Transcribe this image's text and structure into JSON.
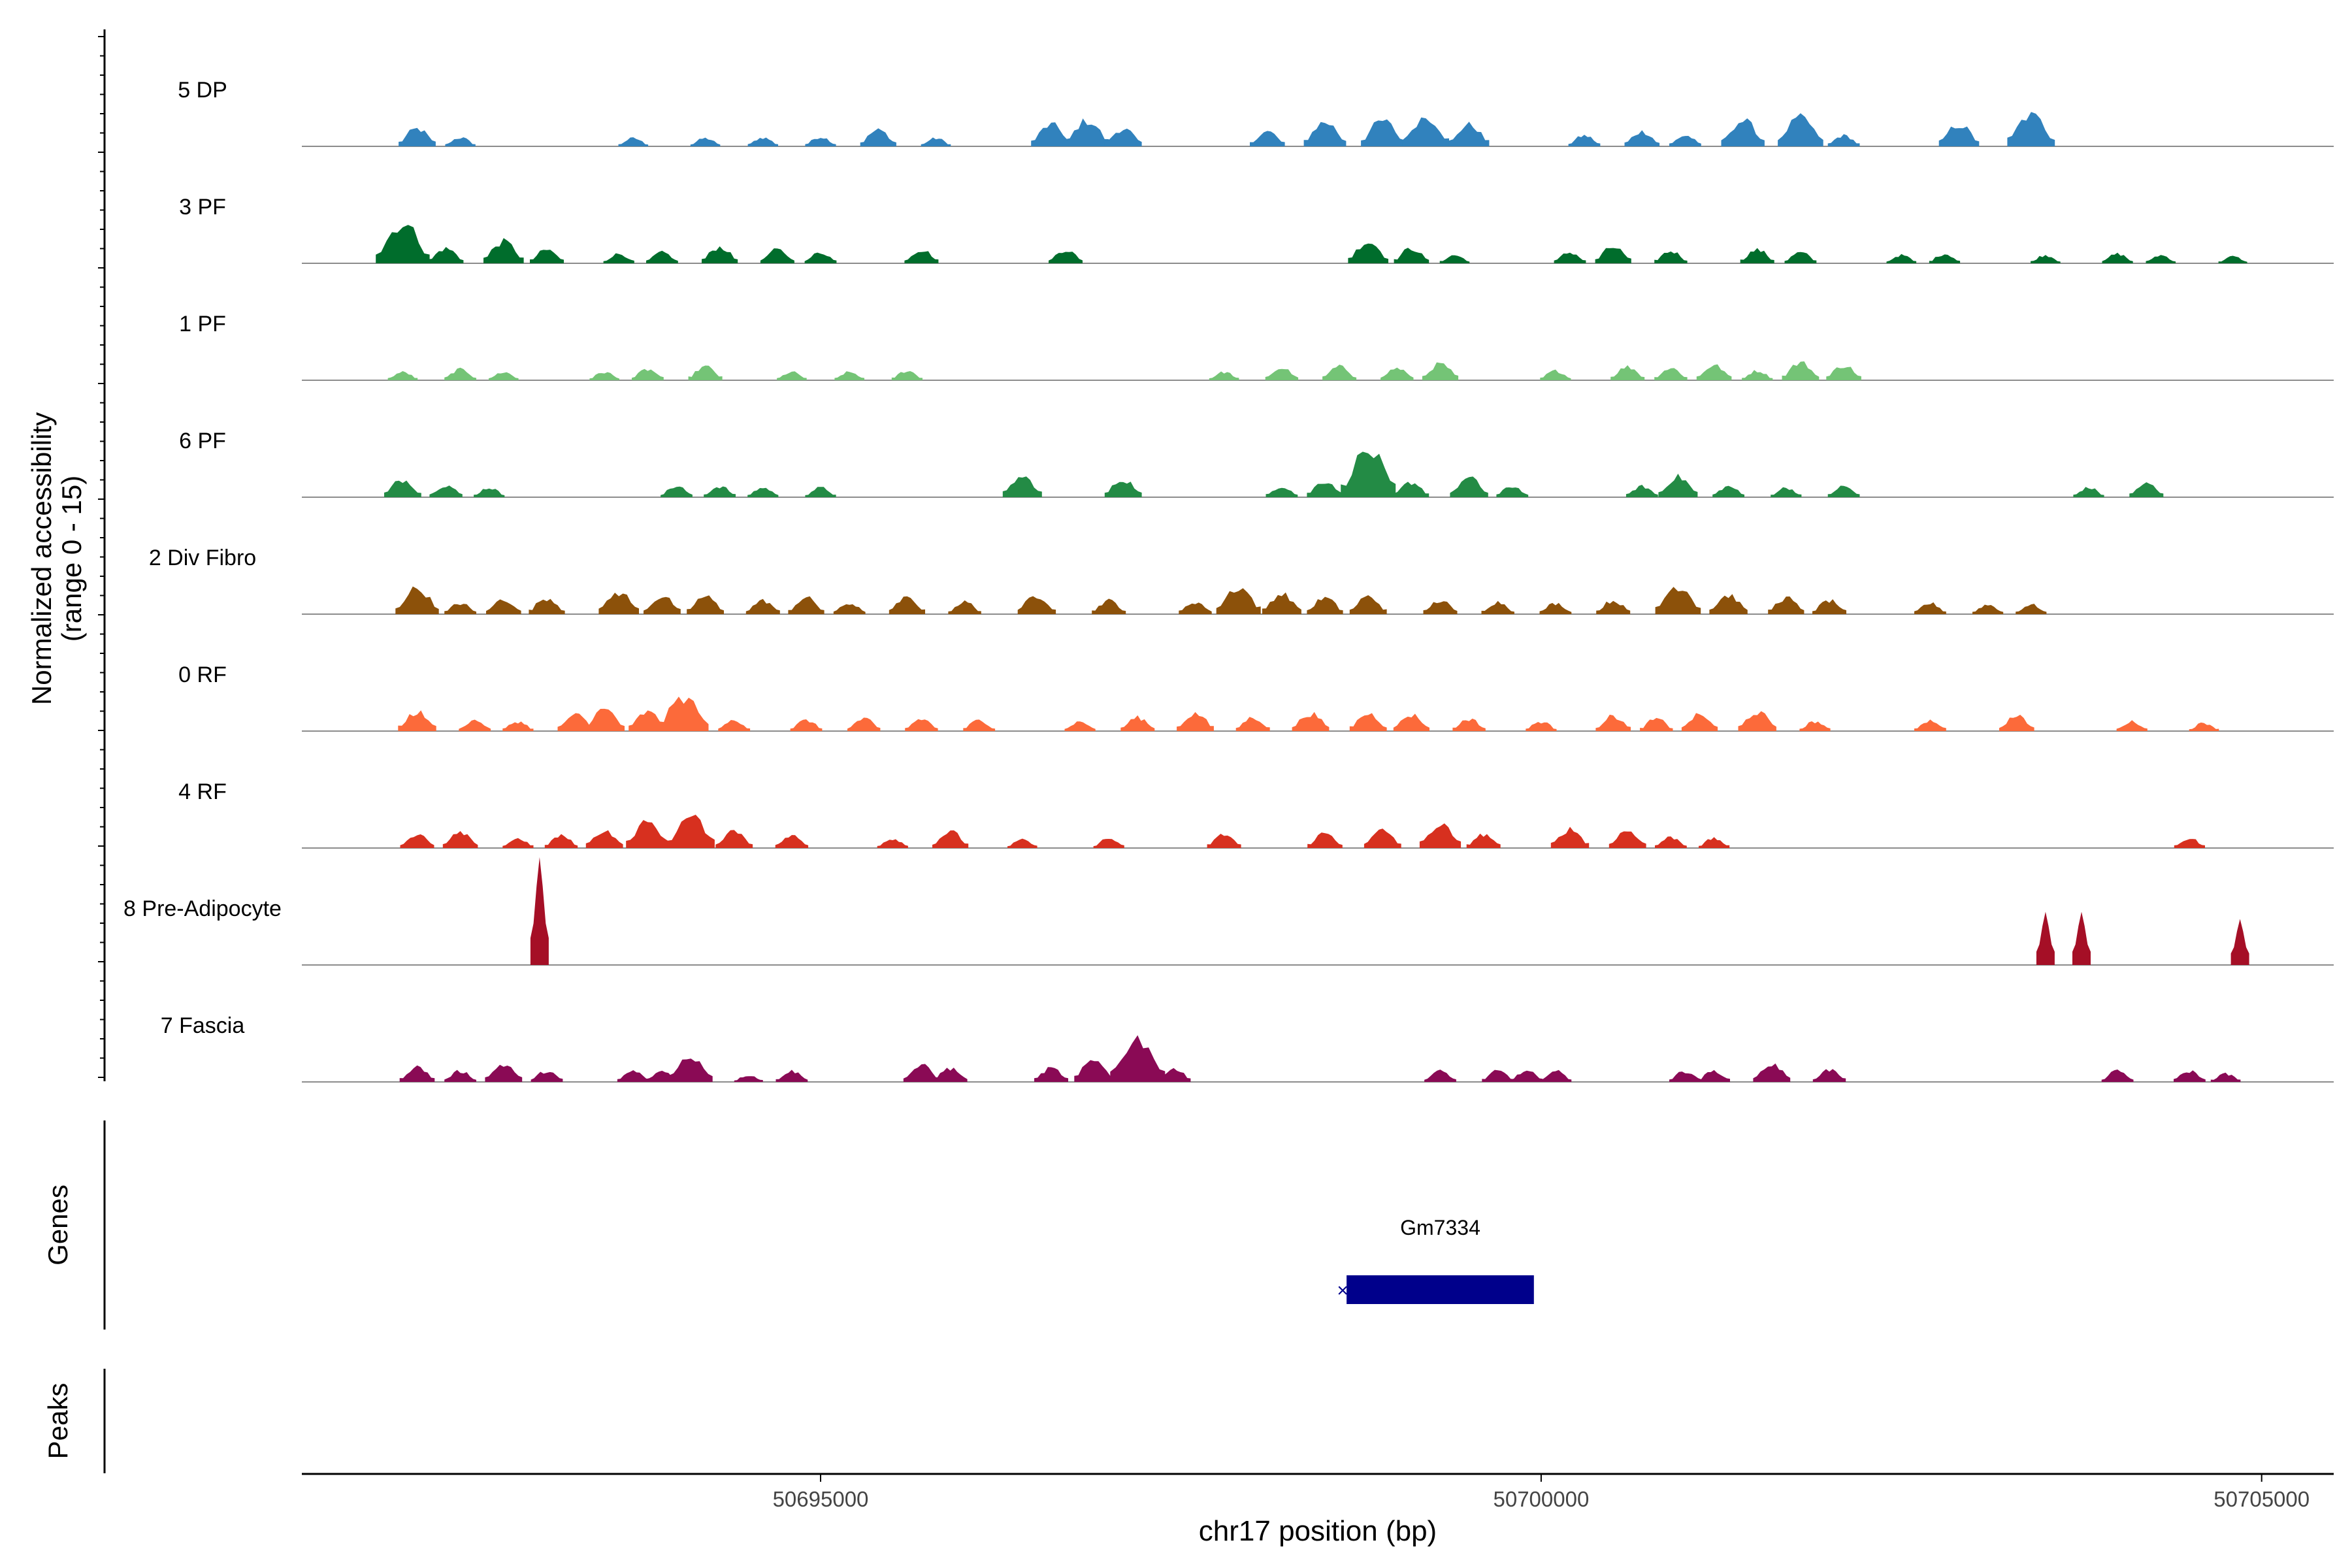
{
  "chart_data": {
    "type": "area",
    "subtype": "genome coverage track plot",
    "xlabel": "chr17 position (bp)",
    "ylabel_line1": "Normalized accessibility",
    "ylabel_line2": "(range 0 - 15)",
    "xlim": [
      50691400,
      50705500
    ],
    "ylim": [
      0,
      15
    ],
    "x_ticks": [
      50695000,
      50700000,
      50705000
    ],
    "x_tick_labels": [
      "50695000",
      "50700000",
      "50705000"
    ],
    "grid": false,
    "legend": "none",
    "series": [
      {
        "name": "5 DP",
        "color": "#3182BD",
        "peaks": [
          [
            50692200,
            2.6
          ],
          [
            50692500,
            1.3
          ],
          [
            50693700,
            1.2
          ],
          [
            50694200,
            1.2
          ],
          [
            50694600,
            1.3
          ],
          [
            50695000,
            1.4
          ],
          [
            50695400,
            2.4
          ],
          [
            50695800,
            1.2
          ],
          [
            50696600,
            3.2
          ],
          [
            50696850,
            3.8
          ],
          [
            50697100,
            2.6
          ],
          [
            50698100,
            2.2
          ],
          [
            50698500,
            3.6
          ],
          [
            50698900,
            3.8
          ],
          [
            50699200,
            4.4
          ],
          [
            50699500,
            3.2
          ],
          [
            50700300,
            1.6
          ],
          [
            50700700,
            2.2
          ],
          [
            50701000,
            1.6
          ],
          [
            50701400,
            3.8
          ],
          [
            50701800,
            4.2
          ],
          [
            50702100,
            1.6
          ],
          [
            50702900,
            3.2
          ],
          [
            50703400,
            4.6
          ]
        ]
      },
      {
        "name": "3 PF",
        "color": "#006D2C",
        "peaks": [
          [
            50692100,
            5.8
          ],
          [
            50692400,
            2.2
          ],
          [
            50692800,
            3.2
          ],
          [
            50693100,
            2.0
          ],
          [
            50693600,
            1.4
          ],
          [
            50693900,
            1.6
          ],
          [
            50694300,
            2.4
          ],
          [
            50694700,
            2.0
          ],
          [
            50695000,
            1.6
          ],
          [
            50695700,
            2.0
          ],
          [
            50696700,
            2.0
          ],
          [
            50698800,
            3.2
          ],
          [
            50699100,
            2.2
          ],
          [
            50699400,
            1.2
          ],
          [
            50700200,
            1.6
          ],
          [
            50700500,
            2.4
          ],
          [
            50700900,
            1.8
          ],
          [
            50701500,
            2.0
          ],
          [
            50701800,
            1.6
          ],
          [
            50702500,
            1.2
          ],
          [
            50702800,
            1.4
          ],
          [
            50703500,
            1.2
          ],
          [
            50704000,
            1.4
          ],
          [
            50704300,
            1.2
          ],
          [
            50704800,
            1.0
          ]
        ]
      },
      {
        "name": "1 PF",
        "color": "#74C476",
        "peaks": [
          [
            50692100,
            1.2
          ],
          [
            50692500,
            1.6
          ],
          [
            50692800,
            1.2
          ],
          [
            50693500,
            1.2
          ],
          [
            50693800,
            1.6
          ],
          [
            50694200,
            2.0
          ],
          [
            50694800,
            1.2
          ],
          [
            50695200,
            1.2
          ],
          [
            50695600,
            1.4
          ],
          [
            50697800,
            1.2
          ],
          [
            50698200,
            1.8
          ],
          [
            50698600,
            2.0
          ],
          [
            50699000,
            1.8
          ],
          [
            50699300,
            2.4
          ],
          [
            50700100,
            1.4
          ],
          [
            50700600,
            2.0
          ],
          [
            50700900,
            1.8
          ],
          [
            50701200,
            2.2
          ],
          [
            50701500,
            1.4
          ],
          [
            50701800,
            2.6
          ],
          [
            50702100,
            2.2
          ]
        ]
      },
      {
        "name": "6 PF",
        "color": "#238B45",
        "peaks": [
          [
            50692100,
            2.6
          ],
          [
            50692400,
            1.8
          ],
          [
            50692700,
            1.4
          ],
          [
            50694000,
            1.6
          ],
          [
            50694300,
            1.6
          ],
          [
            50694600,
            1.4
          ],
          [
            50695000,
            1.4
          ],
          [
            50696400,
            3.0
          ],
          [
            50697100,
            2.6
          ],
          [
            50698200,
            1.6
          ],
          [
            50698500,
            2.4
          ],
          [
            50698800,
            6.8
          ],
          [
            50699100,
            2.2
          ],
          [
            50699500,
            2.8
          ],
          [
            50699800,
            1.6
          ],
          [
            50700700,
            1.6
          ],
          [
            50700950,
            3.0
          ],
          [
            50701300,
            1.6
          ],
          [
            50701700,
            1.4
          ],
          [
            50702100,
            1.6
          ],
          [
            50703800,
            1.4
          ],
          [
            50704200,
            2.0
          ]
        ]
      },
      {
        "name": "2 Div Fibro",
        "color": "#8C510A",
        "peaks": [
          [
            50692200,
            3.8
          ],
          [
            50692500,
            1.6
          ],
          [
            50692800,
            2.2
          ],
          [
            50693100,
            2.4
          ],
          [
            50693600,
            3.2
          ],
          [
            50693900,
            2.6
          ],
          [
            50694200,
            2.6
          ],
          [
            50694600,
            2.0
          ],
          [
            50694900,
            2.4
          ],
          [
            50695200,
            1.6
          ],
          [
            50695600,
            2.4
          ],
          [
            50696000,
            1.8
          ],
          [
            50696500,
            2.8
          ],
          [
            50697000,
            2.0
          ],
          [
            50697600,
            1.8
          ],
          [
            50697900,
            4.0
          ],
          [
            50698200,
            3.0
          ],
          [
            50698500,
            2.4
          ],
          [
            50698800,
            2.6
          ],
          [
            50699300,
            2.0
          ],
          [
            50699700,
            1.8
          ],
          [
            50700100,
            1.6
          ],
          [
            50700500,
            2.0
          ],
          [
            50700950,
            4.2
          ],
          [
            50701300,
            2.8
          ],
          [
            50701700,
            2.4
          ],
          [
            50702000,
            2.0
          ],
          [
            50702700,
            1.6
          ],
          [
            50703100,
            1.4
          ],
          [
            50703400,
            1.4
          ]
        ]
      },
      {
        "name": "0 RF",
        "color": "#FC6A3A",
        "peaks": [
          [
            50692200,
            2.8
          ],
          [
            50692600,
            1.6
          ],
          [
            50692900,
            1.4
          ],
          [
            50693300,
            2.4
          ],
          [
            50693500,
            3.2
          ],
          [
            50693800,
            2.8
          ],
          [
            50694050,
            5.0
          ],
          [
            50694400,
            1.6
          ],
          [
            50694900,
            1.6
          ],
          [
            50695300,
            1.8
          ],
          [
            50695700,
            1.8
          ],
          [
            50696100,
            1.6
          ],
          [
            50696800,
            1.4
          ],
          [
            50697200,
            2.0
          ],
          [
            50697600,
            2.6
          ],
          [
            50698000,
            2.0
          ],
          [
            50698400,
            2.6
          ],
          [
            50698800,
            2.6
          ],
          [
            50699100,
            2.4
          ],
          [
            50699500,
            1.8
          ],
          [
            50700000,
            1.4
          ],
          [
            50700500,
            2.2
          ],
          [
            50700800,
            1.8
          ],
          [
            50701100,
            2.4
          ],
          [
            50701500,
            2.8
          ],
          [
            50701900,
            1.4
          ],
          [
            50702700,
            1.6
          ],
          [
            50703300,
            2.2
          ],
          [
            50704100,
            1.4
          ],
          [
            50704600,
            1.2
          ]
        ]
      },
      {
        "name": "4 RF",
        "color": "#D7301F",
        "peaks": [
          [
            50692200,
            2.0
          ],
          [
            50692500,
            2.2
          ],
          [
            50692900,
            1.4
          ],
          [
            50693200,
            1.8
          ],
          [
            50693500,
            2.6
          ],
          [
            50693800,
            3.8
          ],
          [
            50694100,
            4.6
          ],
          [
            50694400,
            2.6
          ],
          [
            50694800,
            1.8
          ],
          [
            50695500,
            1.4
          ],
          [
            50695900,
            2.4
          ],
          [
            50696400,
            1.2
          ],
          [
            50697000,
            1.4
          ],
          [
            50697800,
            2.0
          ],
          [
            50698500,
            2.2
          ],
          [
            50698900,
            2.6
          ],
          [
            50699300,
            3.4
          ],
          [
            50699600,
            2.0
          ],
          [
            50700200,
            2.8
          ],
          [
            50700600,
            2.6
          ],
          [
            50700900,
            1.6
          ],
          [
            50701200,
            1.4
          ],
          [
            50704500,
            1.4
          ]
        ]
      },
      {
        "name": "8 Pre-Adipocyte",
        "color": "#A50F26",
        "peaks": [
          [
            50693050,
            15.0
          ],
          [
            50703500,
            7.4
          ],
          [
            50703750,
            7.4
          ],
          [
            50704850,
            6.4
          ]
        ]
      },
      {
        "name": "7 Fascia",
        "color": "#8A0A55",
        "peaks": [
          [
            50692200,
            2.2
          ],
          [
            50692500,
            1.6
          ],
          [
            50692800,
            2.6
          ],
          [
            50693100,
            1.6
          ],
          [
            50693700,
            1.6
          ],
          [
            50693900,
            1.6
          ],
          [
            50694100,
            3.8
          ],
          [
            50694500,
            1.0
          ],
          [
            50694800,
            1.6
          ],
          [
            50695700,
            2.4
          ],
          [
            50695900,
            2.0
          ],
          [
            50696600,
            2.0
          ],
          [
            50696900,
            3.2
          ],
          [
            50697200,
            6.4
          ],
          [
            50697450,
            2.0
          ],
          [
            50699300,
            1.6
          ],
          [
            50699700,
            1.6
          ],
          [
            50699900,
            1.6
          ],
          [
            50700100,
            1.6
          ],
          [
            50701000,
            1.6
          ],
          [
            50701200,
            1.6
          ],
          [
            50701600,
            2.6
          ],
          [
            50702000,
            1.8
          ],
          [
            50704000,
            1.6
          ],
          [
            50704500,
            1.6
          ],
          [
            50704750,
            1.2
          ]
        ]
      }
    ],
    "genes": [
      {
        "name": "Gm7334",
        "start": 50698650,
        "end": 50699950,
        "color": "#00008B"
      }
    ],
    "panels": {
      "genes_label": "Genes",
      "peaks_label": "Peaks"
    }
  }
}
